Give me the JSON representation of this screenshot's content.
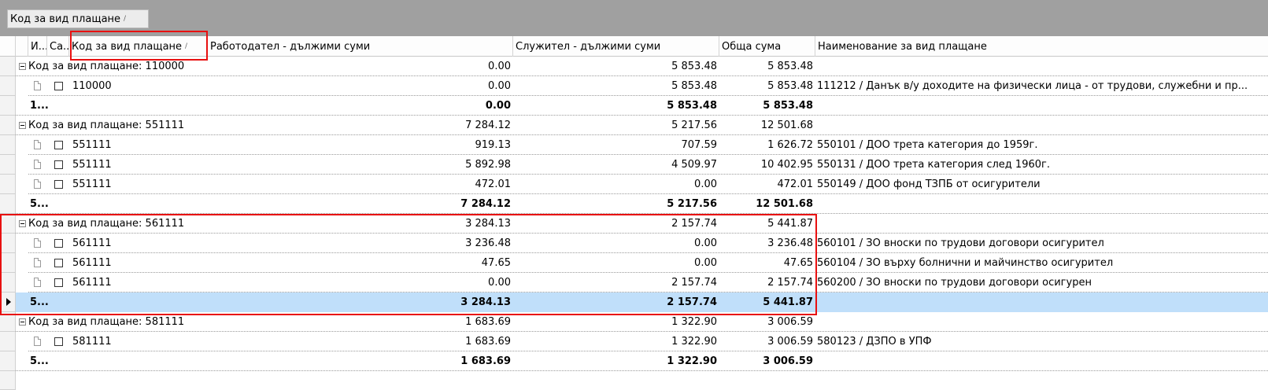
{
  "group_panel": {
    "chip_label": "Код за вид плащане",
    "chip_sort": "/"
  },
  "columns": {
    "c1": "И...",
    "c2": "Са...",
    "code": "Код за вид плащане",
    "code_sort": "/",
    "employer": "Работодател - дължими суми",
    "employee": "Служител - дължими суми",
    "total": "Обща сума",
    "name": "Наименование за вид плащане"
  },
  "groups": [
    {
      "header": {
        "label": "Код за вид плащане: 110000",
        "employer": "0.00",
        "employee": "5 853.48",
        "total": "5 853.48"
      },
      "rows": [
        {
          "code": "110000",
          "employer": "0.00",
          "employee": "5 853.48",
          "total": "5 853.48",
          "name": "111212 / Данък в/у доходите на физически лица - от трудови, служебни и пр..."
        }
      ],
      "summary": {
        "code": "1...",
        "employer": "0.00",
        "employee": "5 853.48",
        "total": "5 853.48"
      }
    },
    {
      "header": {
        "label": "Код за вид плащане: 551111",
        "employer": "7 284.12",
        "employee": "5 217.56",
        "total": "12 501.68"
      },
      "rows": [
        {
          "code": "551111",
          "employer": "919.13",
          "employee": "707.59",
          "total": "1 626.72",
          "name": "550101 / ДОО трета категория до 1959г."
        },
        {
          "code": "551111",
          "employer": "5 892.98",
          "employee": "4 509.97",
          "total": "10 402.95",
          "name": "550131 / ДОО трета категория след 1960г."
        },
        {
          "code": "551111",
          "employer": "472.01",
          "employee": "0.00",
          "total": "472.01",
          "name": "550149 / ДОО фонд ТЗПБ от осигурители"
        }
      ],
      "summary": {
        "code": "5...",
        "employer": "7 284.12",
        "employee": "5 217.56",
        "total": "12 501.68"
      }
    },
    {
      "header": {
        "label": "Код за вид плащане: 561111",
        "employer": "3 284.13",
        "employee": "2 157.74",
        "total": "5 441.87"
      },
      "rows": [
        {
          "code": "561111",
          "employer": "3 236.48",
          "employee": "0.00",
          "total": "3 236.48",
          "name": "560101 / ЗО вноски по трудови договори осигурител"
        },
        {
          "code": "561111",
          "employer": "47.65",
          "employee": "0.00",
          "total": "47.65",
          "name": "560104 / ЗО върху болнични и майчинство осигурител"
        },
        {
          "code": "561111",
          "employer": "0.00",
          "employee": "2 157.74",
          "total": "2 157.74",
          "name": "560200 / ЗО вноски по трудови договори осигурен"
        }
      ],
      "summary": {
        "code": "5...",
        "employer": "3 284.13",
        "employee": "2 157.74",
        "total": "5 441.87"
      }
    },
    {
      "header": {
        "label": "Код за вид плащане: 581111",
        "employer": "1 683.69",
        "employee": "1 322.90",
        "total": "3 006.59"
      },
      "rows": [
        {
          "code": "581111",
          "employer": "1 683.69",
          "employee": "1 322.90",
          "total": "3 006.59",
          "name": "580123 / ДЗПО в УПФ"
        }
      ],
      "summary": {
        "code": "5...",
        "employer": "1 683.69",
        "employee": "1 322.90",
        "total": "3 006.59"
      }
    }
  ],
  "colors": {
    "selected_row": "#c0dffa",
    "highlight": "#e81010",
    "group_panel": "#a0a0a0"
  }
}
